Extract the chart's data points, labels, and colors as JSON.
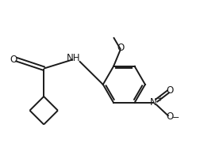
{
  "background_color": "#ffffff",
  "bond_color": "#1a1a1a",
  "line_width": 1.4,
  "figsize": [
    2.57,
    1.91
  ],
  "dpi": 100,
  "xlim": [
    0,
    10
  ],
  "ylim": [
    0,
    7.5
  ]
}
